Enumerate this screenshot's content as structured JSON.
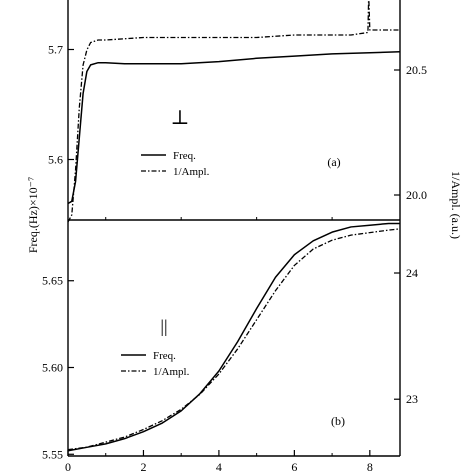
{
  "figure": {
    "ylabel_left": "Freq.(Hz)×10⁻⁷",
    "ylabel_right": "1/Ampl. (a.u.)"
  },
  "chart_data": [
    {
      "type": "line",
      "panel_label": "(a)",
      "orientation_symbol": "⊥",
      "xlim": [
        0,
        8.8
      ],
      "ylim_left": [
        5.545,
        5.745
      ],
      "ylim_right": [
        19.9,
        20.78
      ],
      "yticks_left": [
        "5.6",
        "5.7"
      ],
      "yticks_right": [
        "20.0",
        "20.5"
      ],
      "legend": {
        "placement": "center-left",
        "entries": [
          "Freq.",
          "1/Ampl."
        ]
      },
      "series": [
        {
          "name": "Freq.",
          "axis": "left",
          "style": "solid",
          "x": [
            0.0,
            0.1,
            0.2,
            0.3,
            0.4,
            0.5,
            0.6,
            0.8,
            1.0,
            1.5,
            2.0,
            3.0,
            4.0,
            5.0,
            6.0,
            7.0,
            8.0,
            8.8
          ],
          "y": [
            5.56,
            5.562,
            5.58,
            5.62,
            5.66,
            5.68,
            5.686,
            5.688,
            5.688,
            5.687,
            5.687,
            5.687,
            5.689,
            5.692,
            5.694,
            5.696,
            5.697,
            5.698
          ]
        },
        {
          "name": "1/Ampl.",
          "axis": "right",
          "style": "dash-dot",
          "x": [
            0.0,
            0.1,
            0.2,
            0.3,
            0.4,
            0.5,
            0.6,
            0.8,
            1.0,
            2.0,
            3.0,
            4.0,
            5.0,
            6.0,
            7.0,
            7.5,
            7.95,
            7.97,
            8.0,
            8.8
          ],
          "y": [
            19.88,
            19.92,
            20.1,
            20.35,
            20.52,
            20.58,
            20.61,
            20.62,
            20.62,
            20.63,
            20.63,
            20.63,
            20.63,
            20.64,
            20.64,
            20.64,
            20.65,
            20.9,
            20.66,
            20.66
          ]
        }
      ]
    },
    {
      "type": "line",
      "panel_label": "(b)",
      "orientation_symbol": "||",
      "xlim": [
        0,
        8.8
      ],
      "ylim_left": [
        5.549,
        5.685
      ],
      "ylim_right": [
        22.55,
        24.42
      ],
      "xticks": [
        "0",
        "2",
        "4",
        "6",
        "8"
      ],
      "yticks_left": [
        "5.55",
        "5.60",
        "5.65"
      ],
      "yticks_right": [
        "23",
        "24"
      ],
      "legend": {
        "placement": "lower-left",
        "entries": [
          "Freq.",
          "1/Ampl."
        ]
      },
      "series": [
        {
          "name": "Freq.",
          "axis": "left",
          "style": "solid",
          "x": [
            0.0,
            0.5,
            1.0,
            1.5,
            2.0,
            2.5,
            3.0,
            3.5,
            4.0,
            4.5,
            5.0,
            5.5,
            6.0,
            6.5,
            7.0,
            7.5,
            8.0,
            8.5,
            8.8
          ],
          "y": [
            5.552,
            5.554,
            5.556,
            5.559,
            5.563,
            5.568,
            5.575,
            5.585,
            5.598,
            5.615,
            5.634,
            5.652,
            5.665,
            5.673,
            5.678,
            5.681,
            5.682,
            5.683,
            5.683
          ]
        },
        {
          "name": "1/Ampl.",
          "axis": "right",
          "style": "dash-dot",
          "x": [
            0.0,
            0.5,
            1.0,
            1.5,
            2.0,
            2.5,
            3.0,
            3.5,
            4.0,
            4.5,
            5.0,
            5.5,
            6.0,
            6.5,
            7.0,
            7.5,
            8.0,
            8.5,
            8.8
          ],
          "y": [
            22.6,
            22.62,
            22.66,
            22.7,
            22.76,
            22.83,
            22.92,
            23.04,
            23.2,
            23.4,
            23.63,
            23.86,
            24.06,
            24.19,
            24.26,
            24.3,
            24.32,
            24.34,
            24.35
          ]
        }
      ]
    }
  ]
}
